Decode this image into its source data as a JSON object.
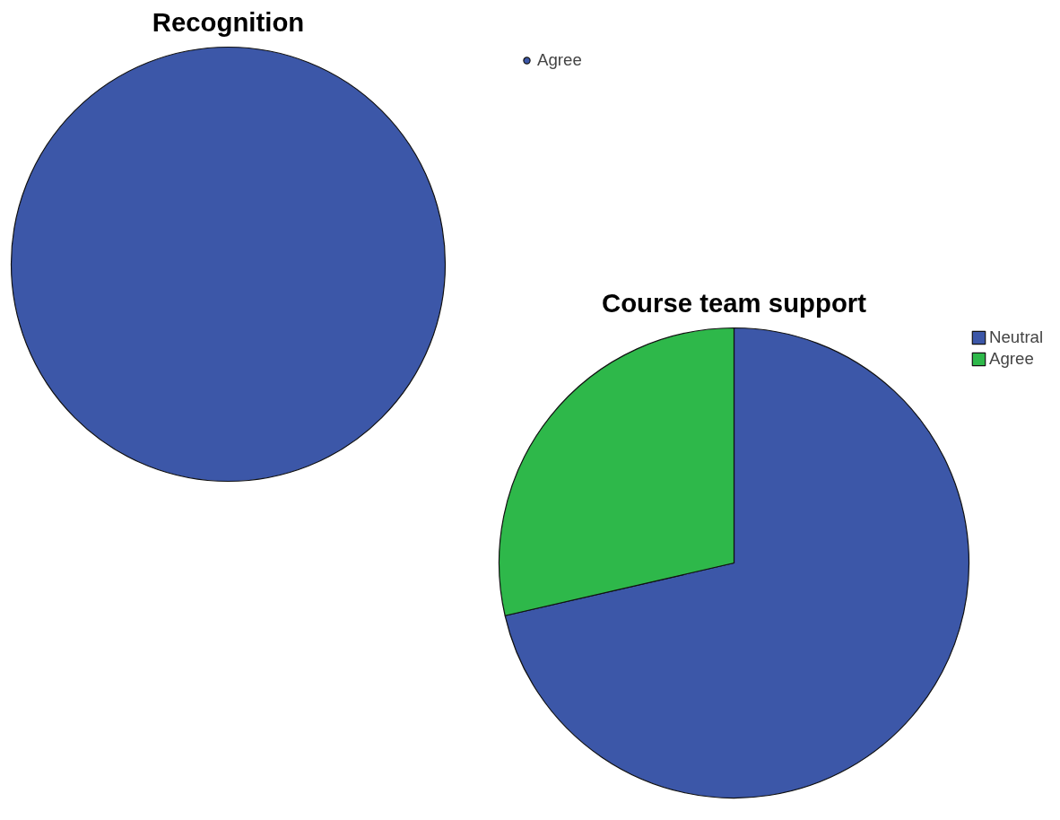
{
  "chart_data": [
    {
      "type": "pie",
      "title": "Recognition",
      "categories": [
        "Agree"
      ],
      "values": [
        100
      ],
      "colors": [
        "#3c57a8"
      ],
      "legend": "top right"
    },
    {
      "type": "pie",
      "title": "Course team support",
      "categories": [
        "Neutral",
        "Agree"
      ],
      "values": [
        71.4,
        28.6
      ],
      "colors": [
        "#3c57a8",
        "#2eb84a"
      ],
      "legend": "top right"
    }
  ]
}
